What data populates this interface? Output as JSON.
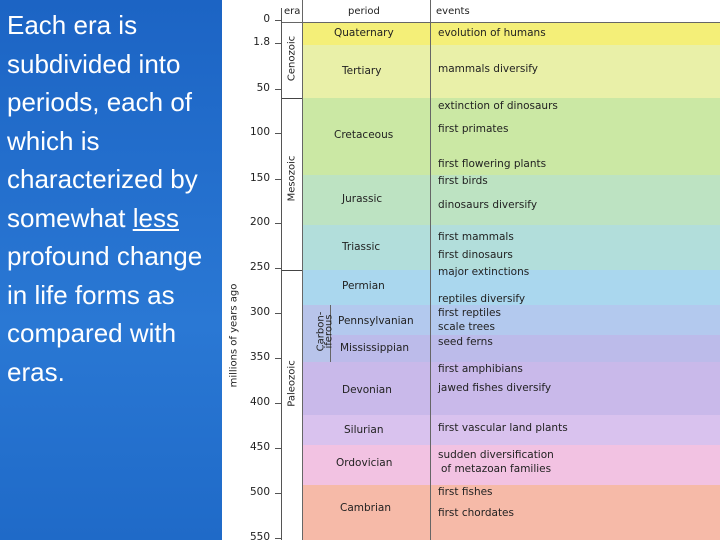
{
  "slide_text": {
    "before": "Each era is subdivided into periods, each of which is characterized by somewhat",
    "emphasis": "less",
    "after": "profound change in life forms as compared with eras."
  },
  "time_scale": {
    "axis_label": "millions of years ago",
    "ticks": [
      "0",
      "1.8",
      "50",
      "100",
      "150",
      "200",
      "250",
      "300",
      "350",
      "400",
      "450",
      "500",
      "550"
    ],
    "headers": [
      "era",
      "period",
      "events"
    ],
    "eras": [
      "Cenozoic",
      "Mesozoic",
      "Paleozoic"
    ],
    "subera": [
      "Carbon-",
      "iferous"
    ],
    "periods": [
      "Quaternary",
      "Tertiary",
      "Cretaceous",
      "Jurassic",
      "Triassic",
      "Permian",
      "Pennsylvanian",
      "Mississippian",
      "Devonian",
      "Silurian",
      "Ordovician",
      "Cambrian"
    ],
    "events": [
      "evolution of humans",
      "mammals diversify",
      "extinction of dinosaurs",
      "first primates",
      "first flowering plants",
      "first birds",
      "dinosaurs diversify",
      "first mammals",
      "first dinosaurs",
      "major extinctions",
      "reptiles diversify",
      "first reptiles",
      "scale trees",
      "seed ferns",
      "first amphibians",
      "jawed fishes diversify",
      "first vascular land plants",
      "sudden diversification",
      "of metazoan families",
      "first fishes",
      "first chordates"
    ]
  }
}
